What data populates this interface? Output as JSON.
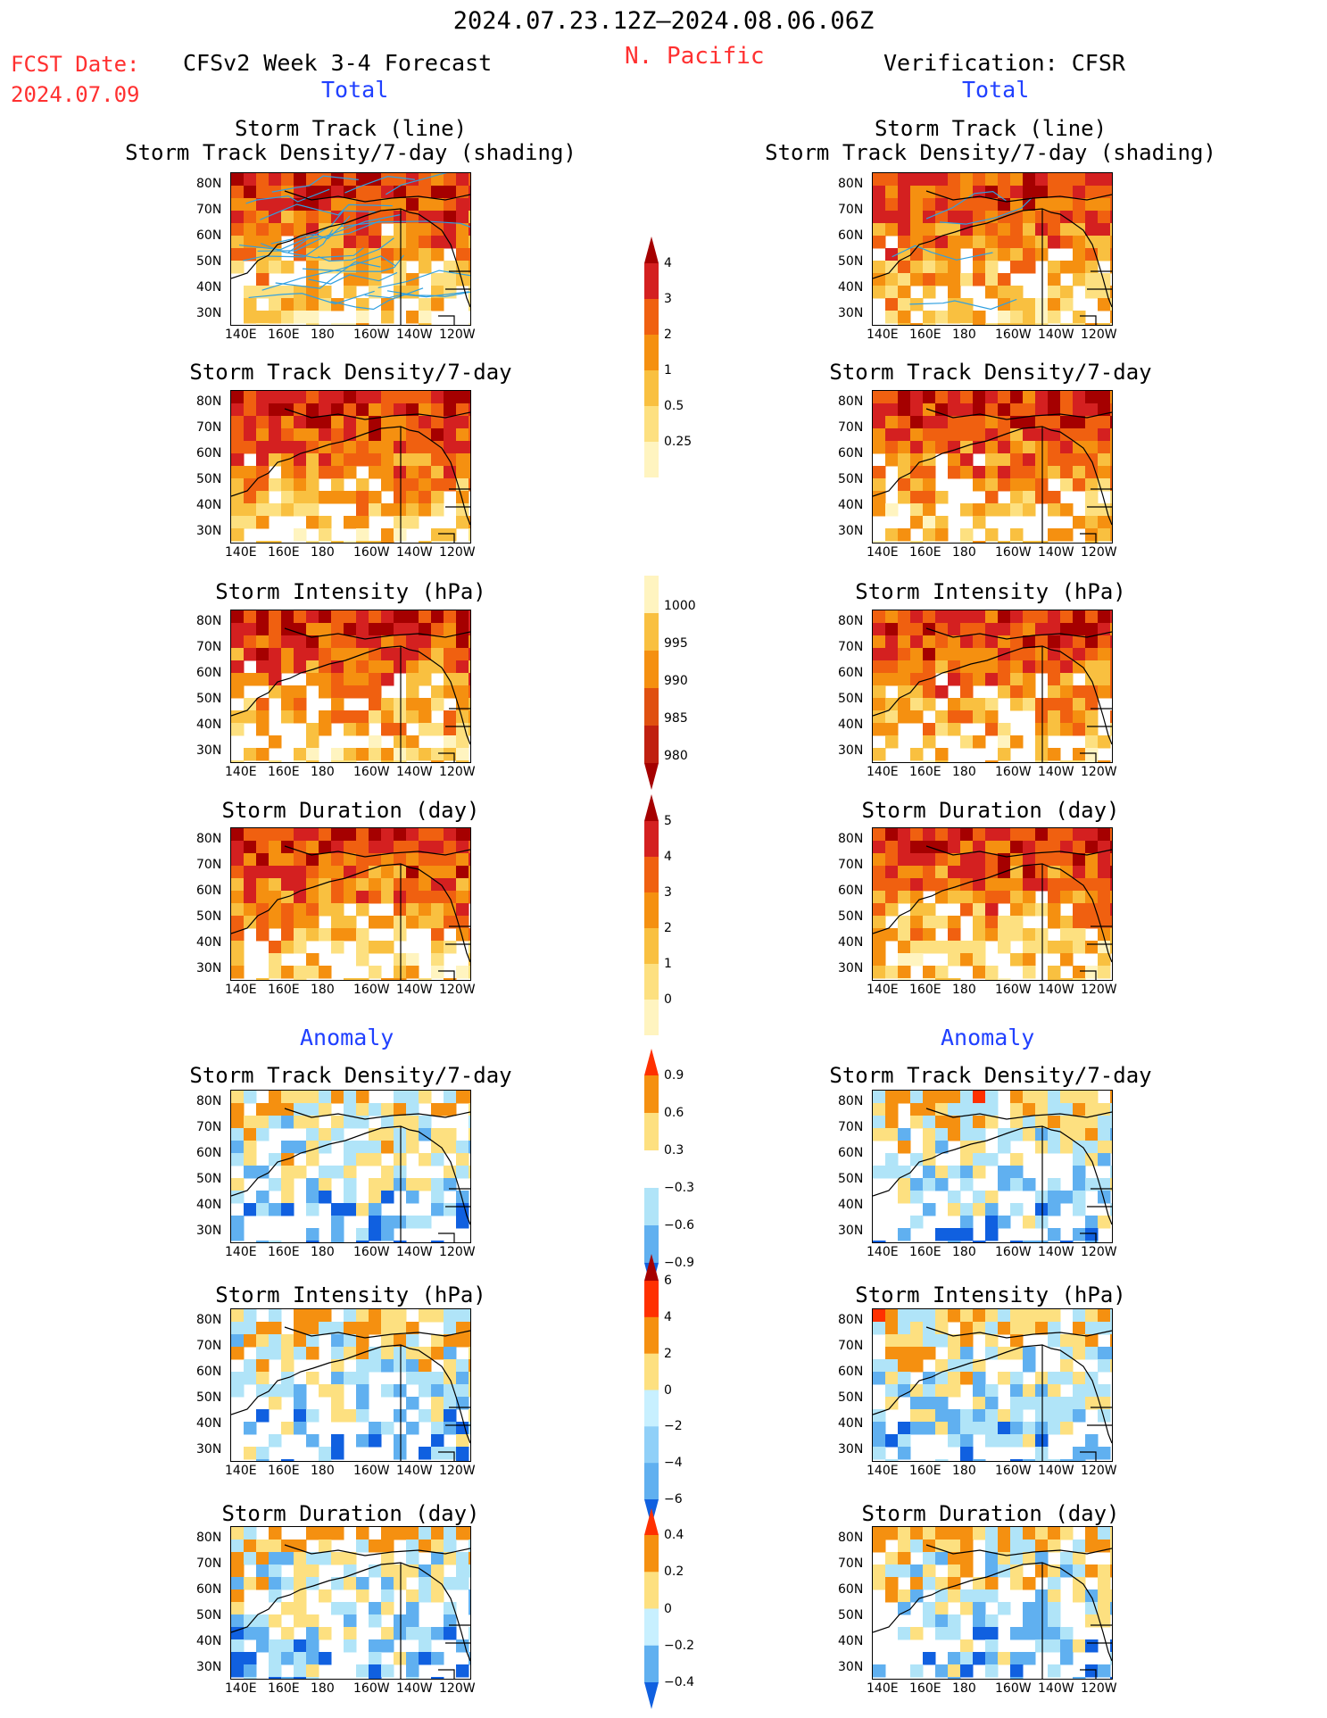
{
  "header": {
    "date_range": "2024.07.23.12Z–2024.08.06.06Z",
    "fcst_label": "FCST Date:",
    "fcst_date": "2024.07.09",
    "region": "N. Pacific",
    "forecast_title": "CFSv2 Week 3-4 Forecast",
    "verification_title": "Verification: CFSR",
    "total_label": "Total",
    "anomaly_label": "Anomaly"
  },
  "axes": {
    "yticks": [
      "80N",
      "70N",
      "60N",
      "50N",
      "40N",
      "30N"
    ],
    "xticks": [
      "140E",
      "160E",
      "180",
      "160W",
      "140W",
      "120W"
    ]
  },
  "panels": {
    "track": {
      "line1": "Storm Track (line)",
      "line2": "Storm Track Density/7-day (shading)"
    },
    "density": "Storm Track Density/7-day",
    "intensity": "Storm Intensity (hPa)",
    "duration": "Storm Duration (day)"
  },
  "colorbars": {
    "density": {
      "labels": [
        "4",
        "3",
        "2",
        "1",
        "0.5",
        "0.25"
      ],
      "colors": [
        "#a50000",
        "#d42020",
        "#f06010",
        "#f59010",
        "#f9c040",
        "#fde080",
        "#fff4c0"
      ]
    },
    "intensity": {
      "labels": [
        "1000",
        "995",
        "990",
        "985",
        "980"
      ],
      "colors": [
        "#fff4c0",
        "#f9c040",
        "#f59010",
        "#e05010",
        "#c02010",
        "#a50000"
      ]
    },
    "duration": {
      "labels": [
        "5",
        "4",
        "3",
        "2",
        "1",
        "0"
      ],
      "colors": [
        "#a50000",
        "#d42020",
        "#f06010",
        "#f59010",
        "#f9c040",
        "#fde080",
        "#fff4c0"
      ]
    },
    "density_anom": {
      "labels": [
        "0.9",
        "0.6",
        "0.3",
        "−0.3",
        "−0.6",
        "−0.9"
      ],
      "colors": [
        "#ff3000",
        "#f59010",
        "#fde080",
        "#ffffff",
        "#b0e4f8",
        "#60b0f0",
        "#1060e0"
      ]
    },
    "intensity_anom": {
      "labels": [
        "6",
        "4",
        "2",
        "0",
        "−2",
        "−4",
        "−6"
      ],
      "colors": [
        "#a50000",
        "#ff3000",
        "#f59010",
        "#fde080",
        "#c8f0ff",
        "#90d0f8",
        "#60b0f0",
        "#1060e0"
      ]
    },
    "duration_anom": {
      "labels": [
        "0.4",
        "0.2",
        "0",
        "−0.2",
        "−0.4"
      ],
      "colors": [
        "#ff3000",
        "#f59010",
        "#fde080",
        "#c8f0ff",
        "#60b0f0",
        "#1060e0"
      ]
    }
  }
}
